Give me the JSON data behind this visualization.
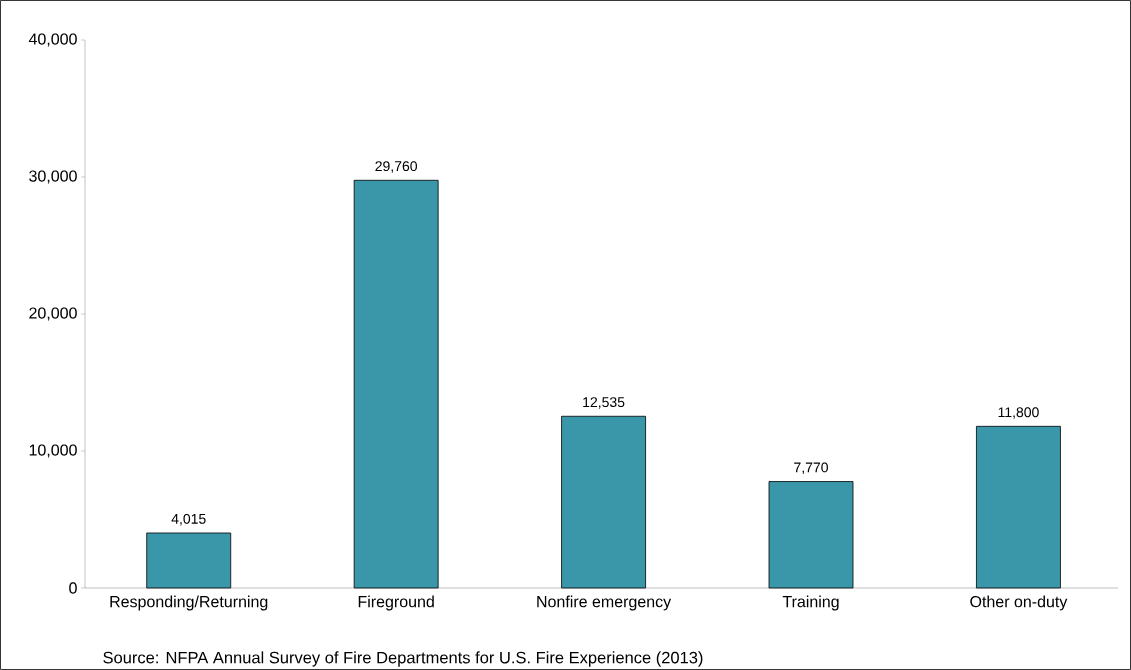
{
  "chart_data": {
    "type": "bar",
    "categories": [
      "Responding/Returning",
      "Fireground",
      "Nonfire emergency",
      "Training",
      "Other on-duty"
    ],
    "values": [
      4015,
      29760,
      12535,
      7770,
      11800
    ],
    "value_labels": [
      "4,015",
      "29,760",
      "12,535",
      "7,770",
      "11,800"
    ],
    "color": "#3a97aa",
    "ylim": [
      0,
      40000
    ],
    "yticks": [
      0,
      {
        "value": 10000,
        "label": "10,000"
      },
      {
        "value": 20000,
        "label": "20,000"
      },
      {
        "value": 30000,
        "label": "30,000"
      },
      {
        "value": 40000,
        "label": "40,000"
      }
    ],
    "grid": false,
    "annotations": [
      "Source: NFPA Annual Survey of Fire Departments for U.S. Fire Experience (2013)"
    ]
  }
}
